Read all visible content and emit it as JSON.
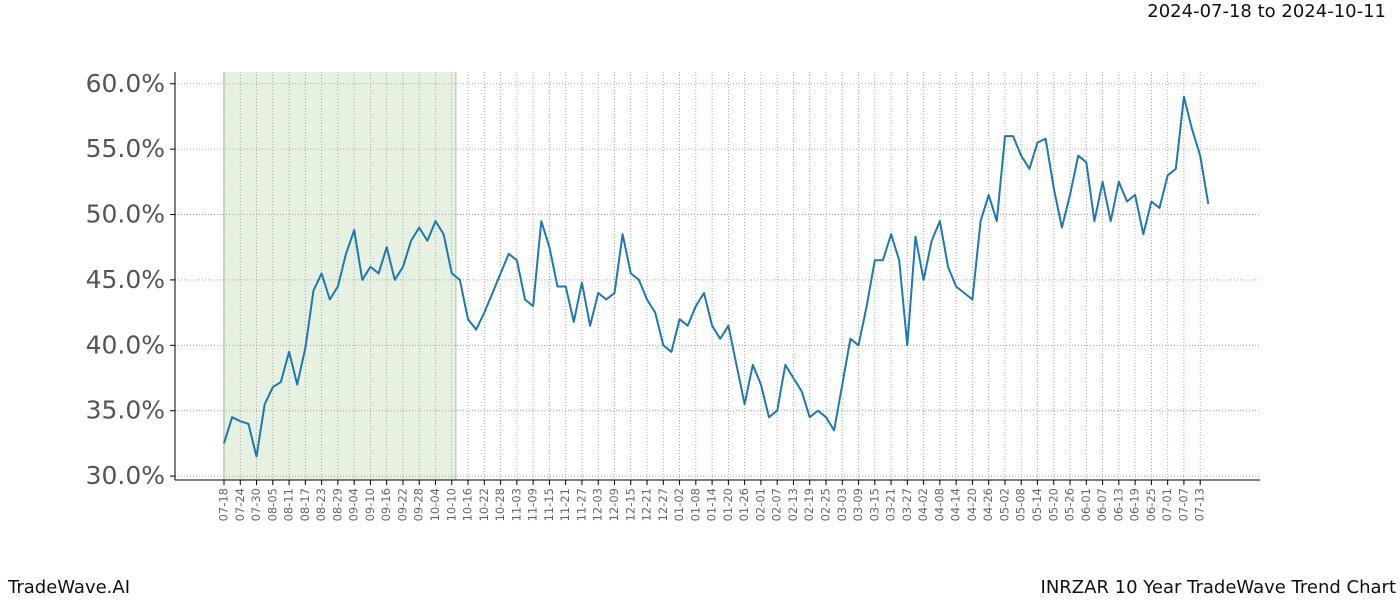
{
  "chart_data": {
    "type": "line",
    "date_range": "2024-07-18 to 2024-10-11",
    "brand": "TradeWave.AI",
    "title": "INRZAR 10 Year TradeWave Trend Chart",
    "x": [
      "07-18",
      null,
      "07-24",
      null,
      "07-30",
      null,
      "08-05",
      null,
      "08-11",
      null,
      "08-17",
      null,
      "08-23",
      null,
      "08-29",
      null,
      "09-04",
      null,
      "09-10",
      null,
      "09-16",
      null,
      "09-22",
      null,
      "09-28",
      null,
      "10-04",
      null,
      "10-10",
      null,
      "10-16",
      null,
      "10-22",
      null,
      "10-28",
      null,
      "11-03",
      null,
      "11-09",
      null,
      "11-15",
      null,
      "11-21",
      null,
      "11-27",
      null,
      "12-03",
      null,
      "12-09",
      null,
      "12-15",
      null,
      "12-21",
      null,
      "12-27",
      null,
      "01-02",
      null,
      "01-08",
      null,
      "01-14",
      null,
      "01-20",
      null,
      "01-26",
      null,
      "02-01",
      null,
      "02-07",
      null,
      "02-13",
      null,
      "02-19",
      null,
      "02-25",
      null,
      "03-03",
      null,
      "03-09",
      null,
      "03-15",
      null,
      "03-21",
      null,
      "03-27",
      null,
      "04-02",
      null,
      "04-08",
      null,
      "04-14",
      null,
      "04-20",
      null,
      "04-26",
      null,
      "05-02",
      null,
      "05-08",
      null,
      "05-14",
      null,
      "05-20",
      null,
      "05-26",
      null,
      "06-01",
      null,
      "06-07",
      null,
      "06-13",
      null,
      "06-19",
      null,
      "06-25",
      null,
      "07-01",
      null,
      "07-07",
      null,
      "07-13",
      null
    ],
    "series": [
      {
        "color": "#1f77b4",
        "values": [
          32.5,
          34.5,
          34.2,
          34.0,
          31.5,
          35.5,
          36.8,
          37.2,
          39.5,
          37.0,
          39.8,
          44.2,
          45.5,
          43.5,
          44.5,
          47.0,
          48.8,
          45.0,
          46.0,
          45.5,
          47.5,
          45.0,
          46.0,
          48.0,
          49.0,
          48.0,
          49.5,
          48.5,
          45.5,
          45.0,
          42.0,
          41.2,
          42.5,
          44.0,
          45.5,
          47.0,
          46.5,
          43.5,
          43.0,
          49.5,
          47.5,
          44.5,
          44.5,
          41.8,
          44.8,
          41.5,
          44.0,
          43.5,
          44.0,
          48.5,
          45.5,
          45.0,
          43.5,
          42.5,
          40.0,
          39.5,
          42.0,
          41.5,
          43.0,
          44.0,
          41.5,
          40.5,
          41.5,
          38.5,
          35.5,
          38.5,
          37.0,
          34.5,
          35.0,
          38.5,
          37.5,
          36.5,
          34.5,
          35.0,
          34.5,
          33.5,
          37.0,
          40.5,
          40.0,
          43.0,
          46.5,
          46.5,
          48.5,
          46.5,
          40.0,
          48.3,
          45.0,
          48.0,
          49.5,
          46.0,
          44.5,
          44.0,
          43.5,
          49.5,
          51.5,
          49.5,
          56.0,
          56.0,
          54.5,
          53.5,
          55.5,
          55.8,
          52.0,
          49.0,
          51.5,
          54.5,
          54.0,
          49.5,
          52.5,
          49.5,
          52.5,
          51.0,
          51.5,
          48.5,
          51.0,
          50.5,
          53.0,
          53.5,
          59.0,
          56.5,
          54.5,
          50.8
        ]
      }
    ],
    "highlight": [
      "07-18",
      "10-10"
    ],
    "highlight_color": "#d8e9d3",
    "ylim": [
      29.7,
      60.9
    ],
    "yticks": [
      {
        "value": 30,
        "label": "30.0%"
      },
      {
        "value": 35,
        "label": "35.0%"
      },
      {
        "value": 40,
        "label": "40.0%"
      },
      {
        "value": 45,
        "label": "45.0%"
      },
      {
        "value": 50,
        "label": "50.0%"
      },
      {
        "value": 55,
        "label": "55.0%"
      },
      {
        "value": 60,
        "label": "60.0%"
      }
    ],
    "grid": true
  }
}
